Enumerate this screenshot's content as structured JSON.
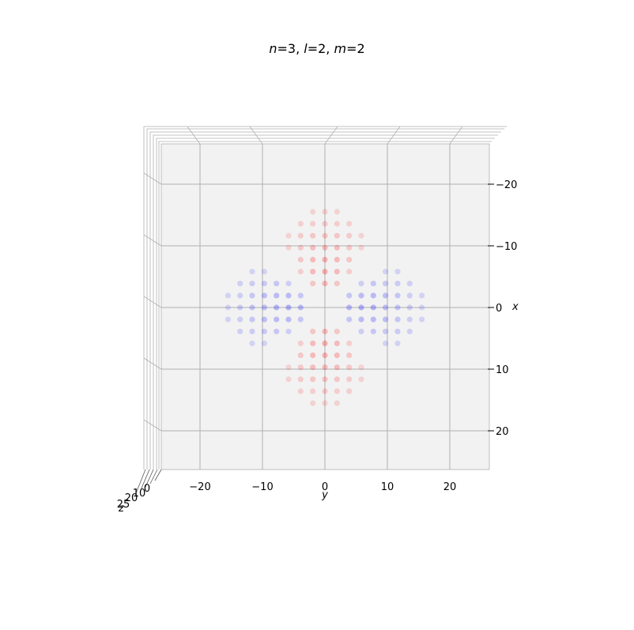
{
  "chart_data": {
    "type": "scatter",
    "title": "n=3, l=2, m=2",
    "title_parts": {
      "n_sym": "n",
      "n_val": "=3, ",
      "l_sym": "l",
      "l_val": "=2, ",
      "m_sym": "m",
      "m_val": "=2"
    },
    "view": "3d-top-down",
    "grid": true,
    "pane_color": "#f2f2f2",
    "x_axis": {
      "label": "x",
      "ticks": [
        "−20",
        "−10",
        "0",
        "10",
        "20"
      ],
      "tick_values": [
        -20,
        -10,
        0,
        10,
        20
      ],
      "range": [
        -26,
        26
      ]
    },
    "y_axis": {
      "label": "y",
      "ticks": [
        "−20",
        "−10",
        "0",
        "10",
        "20"
      ],
      "tick_values": [
        -20,
        -10,
        0,
        10,
        20
      ],
      "range": [
        -26,
        26
      ]
    },
    "z_axis": {
      "label": "z",
      "ticks": [
        "0",
        "10",
        "20",
        "25"
      ],
      "tick_values": [
        0,
        10,
        20,
        25
      ]
    },
    "grid_spacing": 1.94,
    "x_extent": 10,
    "y_extent": 10,
    "series": [
      {
        "color": "#ff0000",
        "sign": "positive"
      },
      {
        "color": "#0000ff",
        "sign": "negative"
      }
    ]
  }
}
